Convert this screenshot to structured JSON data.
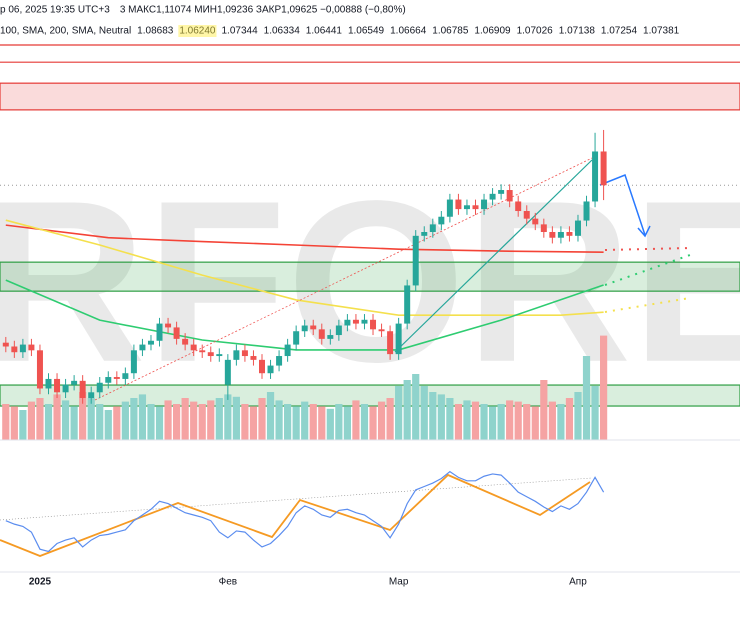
{
  "header": {
    "date": "р 06, 2025 19:35 UTC+3",
    "ohlc": "3  МАКС1,11074  МИН1,09236  ЗАКР1,09625  −0,00888 (−0,80%)",
    "indicator": "100, SMA, 200, SMA, Neutral",
    "indicator_values": [
      "1.08683",
      "1.06240",
      "1.07344",
      "1.06334",
      "1.06441",
      "1.06549",
      "1.06664",
      "1.06785",
      "1.06909",
      "1.07026",
      "1.07138",
      "1.07254",
      "1.07381"
    ],
    "watermark": "RFOREX"
  },
  "chart_data": {
    "type": "candlestick",
    "categories": [
      null,
      null,
      null,
      null,
      "2025",
      null,
      null,
      null,
      null,
      null,
      null,
      null,
      null,
      null,
      null,
      null,
      null,
      null,
      null,
      null,
      null,
      null,
      null,
      null,
      null,
      null,
      "Фев",
      null,
      null,
      null,
      null,
      null,
      null,
      null,
      null,
      null,
      null,
      null,
      null,
      null,
      null,
      null,
      null,
      null,
      null,
      null,
      "Мар",
      null,
      null,
      null,
      null,
      null,
      null,
      null,
      null,
      null,
      null,
      null,
      null,
      null,
      null,
      null,
      null,
      null,
      null,
      null,
      null,
      "Апр",
      null,
      null,
      null
    ],
    "open": [
      1.055,
      1.054,
      1.0525,
      1.0545,
      1.053,
      1.043,
      1.0455,
      1.042,
      1.044,
      1.045,
      1.0405,
      1.042,
      1.0445,
      1.046,
      1.0455,
      1.047,
      1.053,
      1.0545,
      1.0555,
      1.06,
      1.059,
      1.056,
      1.0545,
      1.053,
      1.0525,
      1.0515,
      1.044,
      1.0505,
      1.053,
      1.0515,
      1.0505,
      1.047,
      1.049,
      1.0515,
      1.0545,
      1.058,
      1.0595,
      1.0585,
      1.056,
      1.057,
      1.0595,
      1.061,
      1.06,
      1.061,
      1.0585,
      1.058,
      1.052,
      1.06,
      1.07,
      1.083,
      1.084,
      1.086,
      1.088,
      1.0925,
      1.09,
      1.091,
      1.09,
      1.0925,
      1.094,
      1.095,
      1.092,
      1.0895,
      1.0875,
      1.086,
      1.084,
      1.0825,
      1.084,
      1.083,
      1.087,
      1.092,
      1.1051
    ],
    "high": [
      1.0565,
      1.0555,
      1.056,
      1.056,
      1.0545,
      1.047,
      1.047,
      1.0455,
      1.0465,
      1.0465,
      1.0435,
      1.046,
      1.0475,
      1.0475,
      1.0485,
      1.0545,
      1.056,
      1.057,
      1.0615,
      1.0615,
      1.0605,
      1.0575,
      1.056,
      1.0545,
      1.054,
      1.0535,
      1.052,
      1.0545,
      1.0545,
      1.053,
      1.052,
      1.0505,
      1.053,
      1.056,
      1.0595,
      1.061,
      1.061,
      1.06,
      1.0585,
      1.061,
      1.0625,
      1.0625,
      1.0625,
      1.0625,
      1.06,
      1.0595,
      1.0615,
      1.0715,
      1.0845,
      1.0855,
      1.0875,
      1.0895,
      1.094,
      1.094,
      1.0925,
      1.0925,
      1.094,
      1.0955,
      1.0965,
      1.0965,
      1.0935,
      1.091,
      1.089,
      1.0875,
      1.0855,
      1.0855,
      1.0855,
      1.0885,
      1.0935,
      1.11,
      1.11074
    ],
    "low": [
      1.0525,
      1.051,
      1.051,
      1.0515,
      1.0415,
      1.0415,
      1.0405,
      1.0405,
      1.0425,
      1.039,
      1.039,
      1.0405,
      1.043,
      1.044,
      1.044,
      1.0455,
      1.0515,
      1.053,
      1.054,
      1.0575,
      1.0545,
      1.053,
      1.0515,
      1.051,
      1.05,
      1.05,
      1.04,
      1.049,
      1.05,
      1.049,
      1.0455,
      1.0455,
      1.0475,
      1.05,
      1.053,
      1.0565,
      1.057,
      1.0545,
      1.0545,
      1.0555,
      1.058,
      1.0585,
      1.0585,
      1.057,
      1.0565,
      1.0505,
      1.0505,
      1.0585,
      1.0685,
      1.0815,
      1.0825,
      1.0845,
      1.0865,
      1.0885,
      1.0885,
      1.0885,
      1.0885,
      1.091,
      1.0925,
      1.0905,
      1.088,
      1.086,
      1.0845,
      1.0825,
      1.081,
      1.081,
      1.0815,
      1.0815,
      1.0855,
      1.0905,
      1.09236
    ],
    "close": [
      1.054,
      1.0525,
      1.0545,
      1.053,
      1.043,
      1.0455,
      1.042,
      1.044,
      1.045,
      1.0405,
      1.042,
      1.0445,
      1.046,
      1.0455,
      1.047,
      1.053,
      1.0545,
      1.0555,
      1.06,
      1.059,
      1.056,
      1.0545,
      1.053,
      1.0525,
      1.0515,
      1.052,
      1.0505,
      1.053,
      1.0515,
      1.0505,
      1.047,
      1.049,
      1.0515,
      1.0545,
      1.058,
      1.0595,
      1.0585,
      1.056,
      1.057,
      1.0595,
      1.061,
      1.06,
      1.061,
      1.0585,
      1.058,
      1.052,
      1.06,
      1.07,
      1.083,
      1.084,
      1.086,
      1.088,
      1.0925,
      1.09,
      1.091,
      1.09,
      1.0925,
      1.094,
      1.095,
      1.092,
      1.0895,
      1.0875,
      1.086,
      1.084,
      1.0825,
      1.084,
      1.083,
      1.087,
      1.092,
      1.1051,
      1.09625
    ],
    "up_color": "#26a69a",
    "down_color": "#ef5350",
    "ylim": [
      1.0295,
      1.133
    ],
    "overlays": [
      {
        "color": "#f44336",
        "x": [
          0,
          12,
          23,
          35,
          46,
          58,
          70
        ],
        "values": [
          1.0858,
          1.0825,
          1.0815,
          1.0805,
          1.0795,
          1.079,
          1.0787
        ]
      },
      {
        "color": "#f4e04d",
        "x": [
          0,
          11,
          23,
          34,
          46,
          65,
          70
        ],
        "values": [
          1.0871,
          1.0806,
          1.0727,
          1.0662,
          1.0622,
          1.0622,
          1.063
        ]
      },
      {
        "color": "#2ecc71",
        "x": [
          0,
          11,
          23,
          34,
          46,
          58,
          70
        ],
        "values": [
          1.0714,
          1.0609,
          1.0557,
          1.0531,
          1.0531,
          1.0609,
          1.0701
        ]
      }
    ],
    "zones": [
      {
        "from": 1.116,
        "to": 1.123,
        "color": "#e53935"
      },
      {
        "from": 1.0685,
        "to": 1.0761,
        "color": "#2e9e44"
      },
      {
        "from": 1.0384,
        "to": 1.0439,
        "color": "#2e9e44"
      }
    ],
    "levels": [
      {
        "value": 1.133,
        "color": "#e53935"
      },
      {
        "value": 1.1285,
        "color": "#e53935"
      }
    ],
    "volume": {
      "ylim": [
        0,
        100
      ],
      "up_color": "#8fd3cc",
      "down_color": "#f5a3a3",
      "values": [
        30,
        28,
        25,
        32,
        35,
        30,
        38,
        33,
        28,
        40,
        35,
        30,
        25,
        28,
        32,
        35,
        38,
        30,
        28,
        33,
        30,
        35,
        32,
        30,
        33,
        35,
        38,
        36,
        30,
        28,
        35,
        40,
        33,
        30,
        28,
        32,
        30,
        28,
        26,
        30,
        28,
        33,
        30,
        28,
        32,
        35,
        45,
        50,
        55,
        45,
        40,
        38,
        35,
        30,
        33,
        32,
        30,
        28,
        30,
        33,
        32,
        30,
        28,
        50,
        32,
        30,
        35,
        40,
        70,
        45,
        87
      ]
    },
    "oscillator": {
      "ylim": [
        0,
        100
      ],
      "color": "#5b8def",
      "values": [
        45,
        42,
        40,
        35,
        20,
        18,
        25,
        28,
        30,
        22,
        28,
        32,
        33,
        35,
        37,
        45,
        50,
        55,
        62,
        60,
        56,
        52,
        50,
        48,
        45,
        35,
        30,
        36,
        35,
        28,
        22,
        25,
        32,
        40,
        52,
        58,
        55,
        50,
        48,
        54,
        55,
        52,
        50,
        45,
        40,
        30,
        42,
        60,
        72,
        75,
        78,
        82,
        88,
        83,
        80,
        80,
        84,
        86,
        85,
        78,
        70,
        66,
        62,
        57,
        53,
        58,
        55,
        60,
        70,
        83,
        70
      ]
    }
  }
}
